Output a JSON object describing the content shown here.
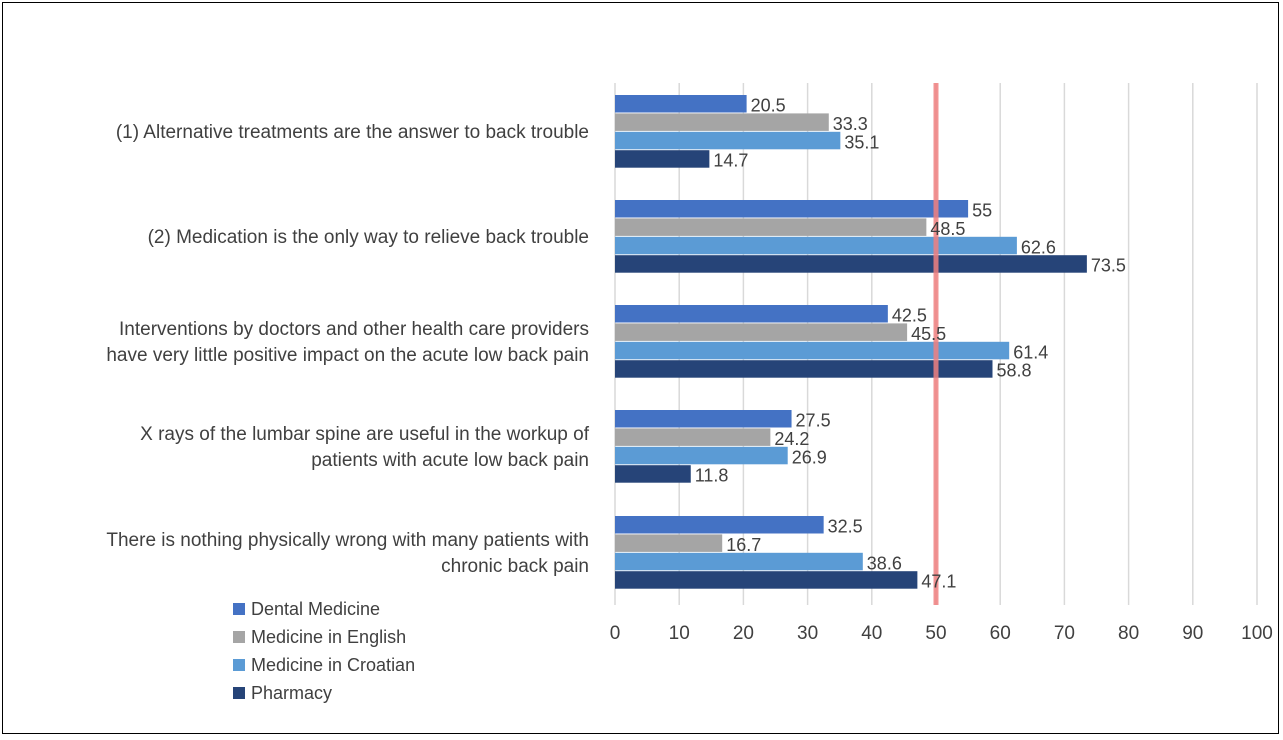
{
  "chart_data": {
    "type": "bar",
    "orientation": "horizontal",
    "title": "",
    "xlabel": "",
    "ylabel": "",
    "xlim": [
      0,
      100
    ],
    "xticks": [
      0,
      10,
      20,
      30,
      40,
      50,
      60,
      70,
      80,
      90,
      100
    ],
    "grid": true,
    "legend_position": "bottom-left",
    "reference_line": {
      "value": 50,
      "color": "#f08080"
    },
    "categories": [
      [
        "(1) Alternative treatments are the answer to back trouble"
      ],
      [
        "(2) Medication is the only way to relieve back trouble"
      ],
      [
        "Interventions by doctors and other health care providers",
        "have very little positive impact on the acute low back pain"
      ],
      [
        "X rays of the lumbar spine are useful in the workup of",
        "patients with acute low back pain"
      ],
      [
        "There is nothing physically wrong with many patients with",
        "chronic back pain"
      ]
    ],
    "series": [
      {
        "name": "Dental Medicine",
        "color": "#4472c4",
        "values": [
          20.5,
          55,
          42.5,
          27.5,
          32.5
        ]
      },
      {
        "name": "Medicine in English",
        "color": "#a5a5a5",
        "values": [
          33.3,
          48.5,
          45.5,
          24.2,
          16.7
        ]
      },
      {
        "name": "Medicine in Croatian",
        "color": "#5b9bd5",
        "values": [
          35.1,
          62.6,
          61.4,
          26.9,
          38.6
        ]
      },
      {
        "name": "Pharmacy",
        "color": "#264478",
        "values": [
          14.7,
          73.5,
          58.8,
          11.8,
          47.1
        ]
      }
    ]
  }
}
